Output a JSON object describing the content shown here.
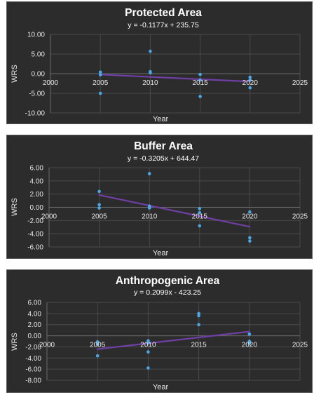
{
  "colors": {
    "background": "#2c2c2c",
    "border": "#5a5a5a",
    "grid": "#4a4a4a",
    "point": "#4aa8e6",
    "trendline": "#6f3fa5",
    "text": "#e6e6e6"
  },
  "chart_data": [
    {
      "type": "scatter",
      "title": "Protected Area",
      "equation": "y = -0.1177x + 235.75",
      "xlabel": "Year",
      "ylabel": "WRS",
      "xlim": [
        2000,
        2025
      ],
      "ylim": [
        -10,
        10
      ],
      "xticks": [
        2000,
        2005,
        2010,
        2015,
        2020,
        2025
      ],
      "xtick_labels": [
        "2000",
        "2005",
        "2010",
        "2015",
        "2020",
        "2025"
      ],
      "yticks": [
        10,
        5,
        0,
        -5,
        -10
      ],
      "ytick_labels": [
        "10.00",
        "5.00",
        "0.00",
        "-5.00",
        "-10.00"
      ],
      "grid": true,
      "x_axis_at": 0,
      "trendline": {
        "slope": -0.1177,
        "intercept": 235.75,
        "from": 2005,
        "to": 2020
      },
      "points": [
        {
          "x": 2005,
          "y": 0.4
        },
        {
          "x": 2005,
          "y": -0.3
        },
        {
          "x": 2005,
          "y": -5.0
        },
        {
          "x": 2010,
          "y": 5.7
        },
        {
          "x": 2010,
          "y": 0.5
        },
        {
          "x": 2010,
          "y": 0.2
        },
        {
          "x": 2015,
          "y": -0.2
        },
        {
          "x": 2015,
          "y": -1.6
        },
        {
          "x": 2015,
          "y": -5.8
        },
        {
          "x": 2020,
          "y": -0.9
        },
        {
          "x": 2020,
          "y": -1.6
        },
        {
          "x": 2020,
          "y": -3.6
        }
      ]
    },
    {
      "type": "scatter",
      "title": "Buffer Area",
      "equation": "y = -0.3205x + 644.47",
      "xlabel": "Year",
      "ylabel": "WRS",
      "xlim": [
        2000,
        2025
      ],
      "ylim": [
        -6,
        6
      ],
      "xticks": [
        2000,
        2005,
        2010,
        2015,
        2020,
        2025
      ],
      "xtick_labels": [
        "2000",
        "2005",
        "2010",
        "2015",
        "2020",
        "2025"
      ],
      "yticks": [
        6,
        4,
        2,
        0,
        -2,
        -4,
        -6
      ],
      "ytick_labels": [
        "6.00",
        "4.00",
        "2.00",
        "0.00",
        "-2.00",
        "-4.00",
        "-6.00"
      ],
      "grid": true,
      "x_axis_at": 0,
      "trendline": {
        "slope": -0.3205,
        "intercept": 644.47,
        "from": 2005,
        "to": 2020
      },
      "points": [
        {
          "x": 2005,
          "y": 2.4
        },
        {
          "x": 2005,
          "y": 0.4
        },
        {
          "x": 2005,
          "y": -0.1
        },
        {
          "x": 2010,
          "y": 5.1
        },
        {
          "x": 2010,
          "y": 0.2
        },
        {
          "x": 2010,
          "y": -0.1
        },
        {
          "x": 2015,
          "y": -0.2
        },
        {
          "x": 2015,
          "y": -0.8
        },
        {
          "x": 2015,
          "y": -2.8
        },
        {
          "x": 2020,
          "y": -0.7
        },
        {
          "x": 2020,
          "y": -4.6
        },
        {
          "x": 2020,
          "y": -5.1
        }
      ]
    },
    {
      "type": "scatter",
      "title": "Anthropogenic Area",
      "equation": "y = 0.2099x - 423.25",
      "xlabel": "Year",
      "ylabel": "WRS",
      "xlim": [
        2000,
        2025
      ],
      "ylim": [
        -8,
        6
      ],
      "xticks": [
        2000,
        2005,
        2010,
        2015,
        2020,
        2025
      ],
      "xtick_labels": [
        "2000",
        "2005",
        "2010",
        "2015",
        "2020",
        "2025"
      ],
      "yticks": [
        6,
        4,
        2,
        0,
        -2,
        -4,
        -6,
        -8
      ],
      "ytick_labels": [
        "6.00",
        "4.00",
        "2.00",
        "0.00",
        "-2.00",
        "-4.00",
        "-6.00",
        "-8.00"
      ],
      "grid": true,
      "x_axis_at": 0,
      "trendline": {
        "slope": 0.2099,
        "intercept": -423.25,
        "from": 2005,
        "to": 2020
      },
      "points": [
        {
          "x": 2005,
          "y": -1.1
        },
        {
          "x": 2005,
          "y": -1.5
        },
        {
          "x": 2005,
          "y": -3.6
        },
        {
          "x": 2010,
          "y": -0.9
        },
        {
          "x": 2010,
          "y": -1.3
        },
        {
          "x": 2010,
          "y": -2.9
        },
        {
          "x": 2010,
          "y": -5.8
        },
        {
          "x": 2015,
          "y": 4.0
        },
        {
          "x": 2015,
          "y": 3.6
        },
        {
          "x": 2015,
          "y": 2.0
        },
        {
          "x": 2020,
          "y": 0.3
        },
        {
          "x": 2020,
          "y": -1.0
        },
        {
          "x": 2020,
          "y": -1.4
        }
      ]
    }
  ]
}
